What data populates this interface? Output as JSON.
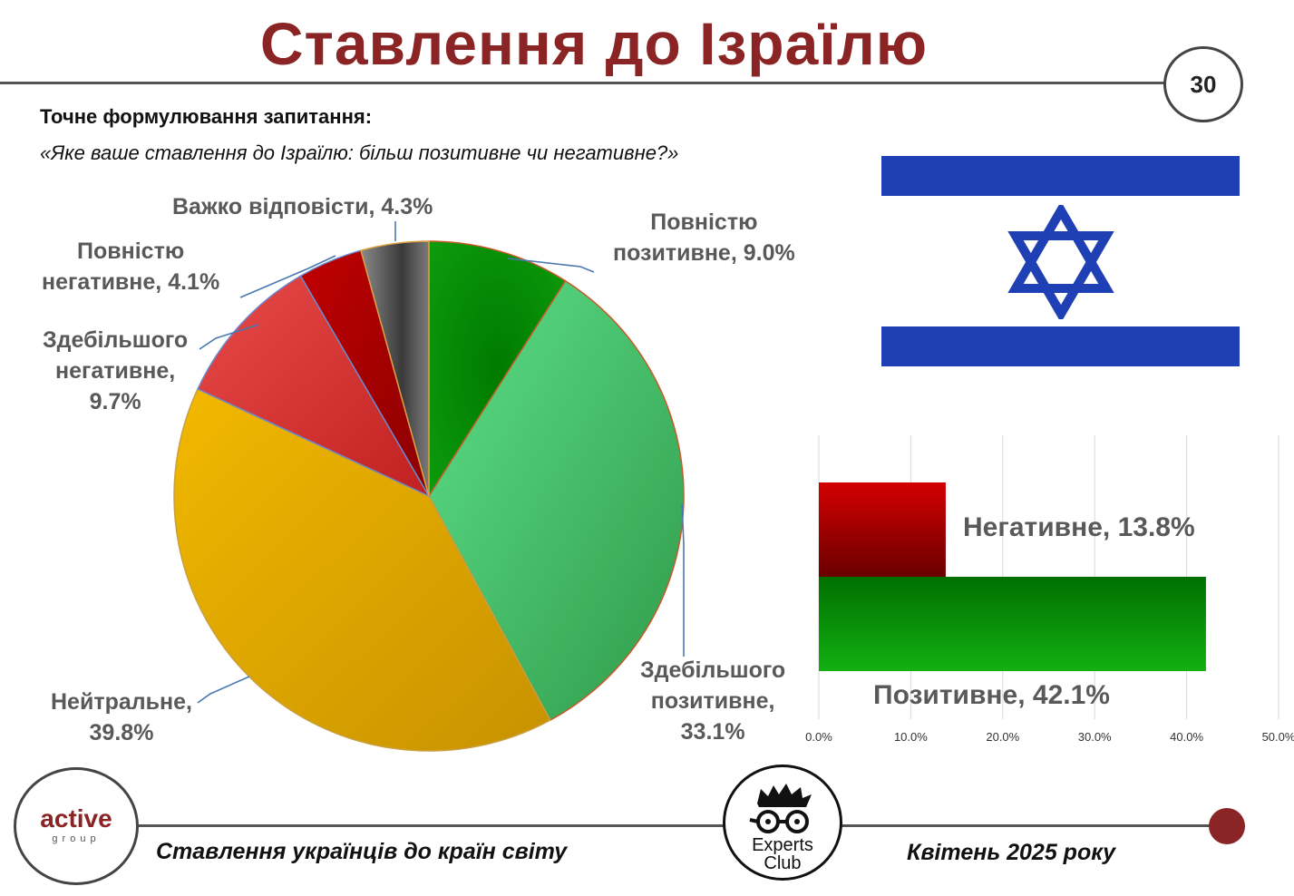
{
  "header": {
    "title": "Ставлення до Ізраїлю",
    "page_number": "30"
  },
  "question": {
    "heading": "Точне формулювання запитання:",
    "text": "«Яке ваше ставлення до Ізраїлю: більш позитивне чи негативне?»"
  },
  "pie_labels": {
    "full_positive": [
      "Повністю",
      "позитивне, 9.0%"
    ],
    "mostly_positive": [
      "Здебільшого",
      "позитивне,",
      "33.1%"
    ],
    "neutral": [
      "Нейтральне,",
      "39.8%"
    ],
    "mostly_negative": [
      "Здебільшого",
      "негативне,",
      "9.7%"
    ],
    "full_negative": [
      "Повністю",
      "негативне, 4.1%"
    ],
    "hard_to_say": [
      "Важко відповісти, 4.3%"
    ]
  },
  "bar_labels": {
    "negative": "Негативне, 13.8%",
    "positive": "Позитивне, 42.1%"
  },
  "footer": {
    "left": "Ставлення українців до країн світу",
    "right": "Квітень 2025 року",
    "logo_left_word": "active",
    "logo_left_sub": "group",
    "logo_right_line1": "Experts",
    "logo_right_line2": "Club"
  },
  "colors": {
    "title": "#8b2424",
    "flag_blue": "#1f3fb5",
    "full_positive": "#0a8a0a",
    "mostly_positive": "#47c46a",
    "neutral": "#e0a800",
    "mostly_negative": "#d93030",
    "full_negative": "#b00000",
    "hard_to_say": "#6b6b6b",
    "bar_negative": "#b50000",
    "bar_positive": "#0d9a0d"
  },
  "chart_data": [
    {
      "type": "pie",
      "categories": [
        "Повністю позитивне",
        "Здебільшого позитивне",
        "Нейтральне",
        "Здебільшого негативне",
        "Повністю негативне",
        "Важко відповісти"
      ],
      "values": [
        9.0,
        33.1,
        39.8,
        9.7,
        4.1,
        4.3
      ],
      "unit": "%"
    },
    {
      "type": "bar",
      "orientation": "horizontal",
      "categories": [
        "Негативне",
        "Позитивне"
      ],
      "values": [
        13.8,
        42.1
      ],
      "unit": "%",
      "xlim": [
        0,
        50
      ],
      "x_ticks": [
        "0.0%",
        "10.0%",
        "20.0%",
        "30.0%",
        "40.0%",
        "50.0%"
      ],
      "grid": true
    }
  ]
}
